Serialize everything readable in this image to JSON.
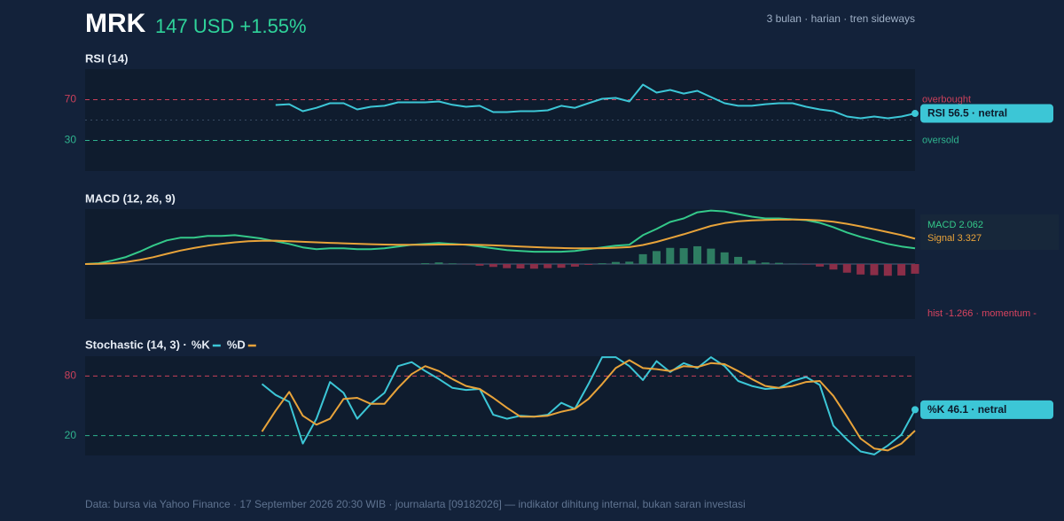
{
  "header": {
    "ticker": "MRK",
    "quote": "147 USD +1.55%",
    "note": "3 bulan · harian · tren sideways"
  },
  "footer": "Data: bursa via Yahoo Finance · 17 September 2026 20:30 WIB · journalarta [09182026] — indikator dihitung internal, bukan saran investasi",
  "chart_data": [
    {
      "type": "line",
      "title": "RSI (14)",
      "ylim": [
        0,
        100
      ],
      "yticks": [
        30,
        70
      ],
      "midline": 50,
      "reference_lines": [
        {
          "value": 70,
          "label": "overbought",
          "color": "#c9405a"
        },
        {
          "value": 30,
          "label": "oversold",
          "color": "#2fb38e"
        }
      ],
      "badge": "RSI 56.5 · netral",
      "series": [
        {
          "color": "#3cc6d6",
          "values": [
            null,
            null,
            null,
            null,
            null,
            null,
            null,
            null,
            null,
            null,
            null,
            null,
            null,
            null,
            64.8,
            65.6,
            58.7,
            62,
            66.5,
            66.5,
            60.4,
            63,
            64,
            67.4,
            67.4,
            67.4,
            68.3,
            65,
            63,
            64,
            57.8,
            57.8,
            58.7,
            58.7,
            59.6,
            64,
            62,
            66.5,
            70.9,
            71.7,
            68.3,
            84.8,
            77,
            79.6,
            76,
            78.7,
            72.6,
            66.5,
            64,
            64,
            65.6,
            66.5,
            66.5,
            63,
            60.4,
            58.7,
            53.5,
            51.7,
            53.5,
            51.7,
            53.5,
            56.5
          ]
        }
      ]
    },
    {
      "type": "line",
      "title": "MACD (12, 26, 9)",
      "ylim": [
        -7.2,
        7.2
      ],
      "series": [
        {
          "name": "MACD 2.062",
          "color": "#34c98a",
          "values": [
            0,
            0.11,
            0.46,
            0.92,
            1.61,
            2.41,
            3.1,
            3.45,
            3.45,
            3.68,
            3.68,
            3.79,
            3.56,
            3.33,
            2.99,
            2.64,
            2.18,
            1.95,
            2.07,
            2.07,
            1.95,
            1.95,
            2.07,
            2.3,
            2.53,
            2.64,
            2.76,
            2.64,
            2.53,
            2.3,
            2.07,
            1.84,
            1.72,
            1.61,
            1.61,
            1.61,
            1.72,
            1.95,
            2.18,
            2.41,
            2.53,
            3.79,
            4.6,
            5.52,
            5.98,
            6.78,
            7.01,
            6.9,
            6.55,
            6.21,
            5.98,
            5.98,
            5.86,
            5.75,
            5.4,
            4.83,
            4.14,
            3.56,
            3.1,
            2.64,
            2.3,
            2.062
          ]
        },
        {
          "name": "Signal 3.327",
          "color": "#e8a33a",
          "values": [
            0,
            0.02,
            0.1,
            0.26,
            0.53,
            0.9,
            1.34,
            1.76,
            2.1,
            2.4,
            2.65,
            2.85,
            2.98,
            3.05,
            3.06,
            3.0,
            2.92,
            2.85,
            2.78,
            2.72,
            2.66,
            2.6,
            2.56,
            2.53,
            2.52,
            2.53,
            2.55,
            2.56,
            2.56,
            2.51,
            2.45,
            2.38,
            2.3,
            2.22,
            2.15,
            2.1,
            2.06,
            2.06,
            2.08,
            2.14,
            2.22,
            2.5,
            2.9,
            3.4,
            3.9,
            4.45,
            4.99,
            5.37,
            5.61,
            5.73,
            5.78,
            5.82,
            5.83,
            5.81,
            5.73,
            5.55,
            5.27,
            4.93,
            4.56,
            4.18,
            3.8,
            3.327
          ]
        },
        {
          "name": "hist -1.266 · momentum -",
          "type": "bar",
          "color": "#2e7d62",
          "negative_color": "#8b2e48",
          "label_color": "#d9435f",
          "values": [
            null,
            null,
            null,
            null,
            null,
            null,
            null,
            null,
            null,
            null,
            null,
            null,
            null,
            null,
            null,
            null,
            null,
            null,
            null,
            null,
            null,
            null,
            null,
            null,
            null,
            0.11,
            0.21,
            0.08,
            -0.03,
            -0.21,
            -0.38,
            -0.54,
            -0.58,
            -0.61,
            -0.54,
            -0.49,
            -0.34,
            -0.11,
            0.1,
            0.27,
            0.31,
            1.29,
            1.7,
            2.12,
            2.08,
            2.33,
            2.02,
            1.53,
            0.94,
            0.48,
            0.2,
            0.16,
            0.03,
            -0.06,
            -0.33,
            -0.72,
            -1.13,
            -1.37,
            -1.46,
            -1.54,
            -1.5,
            -1.266
          ]
        }
      ]
    },
    {
      "type": "line",
      "title": "Stochastic (14, 3) ·",
      "ylim": [
        0,
        100
      ],
      "yticks": [
        20,
        80
      ],
      "reference_lines": [
        {
          "value": 80,
          "color": "#c9405a"
        },
        {
          "value": 20,
          "color": "#2fb38e"
        }
      ],
      "badge": "%K 46.1 · netral",
      "series": [
        {
          "name": "%K",
          "color": "#3cc6d6",
          "values": [
            null,
            null,
            null,
            null,
            null,
            null,
            null,
            null,
            null,
            null,
            null,
            null,
            null,
            72,
            61,
            54,
            12,
            37,
            74,
            63,
            37,
            52,
            63,
            90,
            94,
            85,
            77,
            68,
            66,
            67,
            41,
            37,
            40,
            39,
            41,
            53,
            47,
            72,
            99,
            99,
            90,
            76,
            95,
            84,
            93,
            88,
            99,
            90,
            75,
            70,
            67,
            68,
            75,
            79,
            71,
            30,
            16,
            4,
            1,
            10,
            21,
            46.1
          ]
        },
        {
          "name": "%D",
          "color": "#e8a33a",
          "values": [
            null,
            null,
            null,
            null,
            null,
            null,
            null,
            null,
            null,
            null,
            null,
            null,
            null,
            24,
            45,
            64,
            40,
            31,
            37,
            57,
            58,
            52,
            52,
            68,
            82,
            90,
            85,
            77,
            70,
            67,
            58,
            48,
            39,
            39,
            40,
            44,
            47,
            57,
            72,
            88,
            96,
            88,
            87,
            85,
            90,
            89,
            93,
            92,
            85,
            77,
            70,
            68,
            70,
            74,
            75,
            60,
            39,
            17,
            7,
            5,
            12,
            25
          ]
        }
      ]
    }
  ]
}
